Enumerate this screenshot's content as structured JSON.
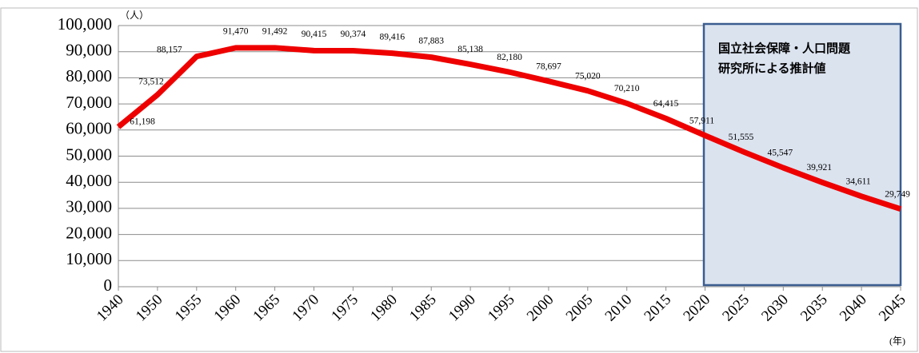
{
  "chart_data": {
    "type": "line",
    "y_unit": "（人）",
    "x_unit": "(年)",
    "annotation": [
      "国立社会保障・人口問題",
      "研究所による推計値"
    ],
    "categories": [
      "1940",
      "1950",
      "1955",
      "1960",
      "1965",
      "1970",
      "1975",
      "1980",
      "1985",
      "1990",
      "1995",
      "2000",
      "2005",
      "2010",
      "2015",
      "2020",
      "2025",
      "2030",
      "2035",
      "2040",
      "2045"
    ],
    "series": [
      {
        "color": "#ee0000",
        "values": [
          61198,
          73512,
          88157,
          91470,
          91492,
          90415,
          90374,
          89416,
          87883,
          85138,
          82180,
          78697,
          75020,
          70210,
          64415,
          57911,
          51555,
          45547,
          39921,
          34611,
          29749
        ],
        "value_labels": [
          "61,198",
          "73,512",
          "88,157",
          "91,470",
          "91,492",
          "90,415",
          "90,374",
          "89,416",
          "87,883",
          "85,138",
          "82,180",
          "78,697",
          "75,020",
          "70,210",
          "64,415",
          "57,911",
          "51,555",
          "45,547",
          "39,921",
          "34,611",
          "29,749"
        ]
      }
    ],
    "ylim": [
      0,
      100000
    ],
    "yticks": [
      0,
      {
        "value": 10000,
        "label": "10,000"
      },
      {
        "value": 20000,
        "label": "20,000"
      },
      {
        "value": 30000,
        "label": "30,000"
      },
      {
        "value": 40000,
        "label": "40,000"
      },
      {
        "value": 50000,
        "label": "50,000"
      },
      {
        "value": 60000,
        "label": "60,000"
      },
      {
        "value": 70000,
        "label": "70,000"
      },
      {
        "value": 80000,
        "label": "80,000"
      },
      {
        "value": 90000,
        "label": "90,000"
      },
      {
        "value": 100000,
        "label": "100,000"
      }
    ],
    "grid": true
  }
}
